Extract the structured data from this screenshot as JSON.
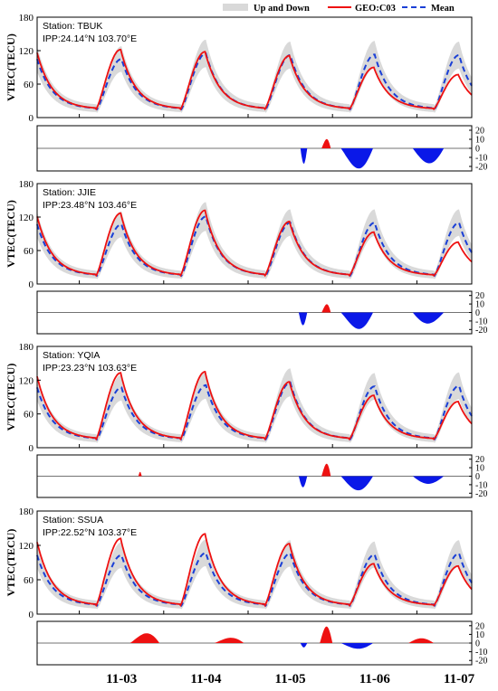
{
  "legend": {
    "band": "Up and Down",
    "obs": "GEO:C03",
    "mean": "Mean"
  },
  "colors": {
    "band": "#d9d9d9",
    "obs": "#ee1111",
    "mean": "#1a3fd6",
    "pos": "#ee1111",
    "neg": "#0a18e8"
  },
  "chart_data": {
    "type": "line",
    "x_unit": "day of November (UT)",
    "xlim": [
      2.5,
      7.65
    ],
    "x_ticks": [
      3,
      4,
      5,
      6,
      7
    ],
    "x_tick_labels": [
      "11-03",
      "11-04",
      "11-05",
      "11-06",
      "11-07"
    ],
    "ylabel": "VTEC(TECU)",
    "ylim": [
      0,
      180
    ],
    "y_ticks": [
      0,
      60,
      120,
      180
    ],
    "diff_ylim": [
      -25,
      25
    ],
    "diff_ticks": [
      20,
      10,
      0,
      -10,
      -20
    ],
    "panels": [
      {
        "station": "Station: TBUK",
        "ipp": "IPP:24.14°N 103.70°E",
        "obs_peaks": [
          122,
          118,
          111,
          90,
          77
        ],
        "mean_peaks": [
          105,
          115,
          112,
          113,
          112
        ],
        "diff_segments": [
          {
            "x": [
              5.62,
              5.7
            ],
            "h": [
              -17,
              -17
            ]
          },
          {
            "x": [
              6.1,
              6.48
            ],
            "h": [
              -16,
              -28
            ]
          },
          {
            "x": [
              6.95,
              7.32
            ],
            "h": [
              -14,
              -19
            ]
          },
          {
            "x": [
              5.87,
              5.98
            ],
            "h": [
              7,
              13
            ]
          }
        ]
      },
      {
        "station": "Station: JJIE",
        "ipp": "IPP:23.48°N 103.46°E",
        "obs_peaks": [
          127,
          132,
          112,
          93,
          75
        ],
        "mean_peaks": [
          107,
          121,
          110,
          110,
          110
        ],
        "diff_segments": [
          {
            "x": [
              5.6,
              5.7
            ],
            "h": [
              -15,
              -15
            ]
          },
          {
            "x": [
              6.1,
              6.48
            ],
            "h": [
              -13,
              -25
            ]
          },
          {
            "x": [
              6.95,
              7.32
            ],
            "h": [
              -14,
              -12
            ]
          },
          {
            "x": [
              5.87,
              5.98
            ],
            "h": [
              6,
              13
            ]
          }
        ]
      },
      {
        "station": "Station: YQIA",
        "ipp": "IPP:23.23°N 103.63°E",
        "obs_peaks": [
          133,
          135,
          117,
          93,
          82
        ],
        "mean_peaks": [
          107,
          111,
          116,
          109,
          110
        ],
        "diff_segments": [
          {
            "x": [
              5.6,
              5.7
            ],
            "h": [
              -13,
              -13
            ]
          },
          {
            "x": [
              6.1,
              6.48
            ],
            "h": [
              -13,
              -20
            ]
          },
          {
            "x": [
              6.95,
              7.32
            ],
            "h": [
              -9,
              -9
            ]
          },
          {
            "x": [
              5.87,
              5.98
            ],
            "h": [
              11,
              18
            ]
          },
          {
            "x": [
              3.7,
              3.74
            ],
            "h": [
              5,
              5
            ]
          }
        ]
      },
      {
        "station": "Station: SSUA",
        "ipp": "IPP:22.52°N 103.37°E",
        "obs_peaks": [
          132,
          140,
          123,
          88,
          84
        ],
        "mean_peaks": [
          103,
          107,
          106,
          104,
          106
        ],
        "diff_segments": [
          {
            "x": [
              5.62,
              5.7
            ],
            "h": [
              -5,
              -5
            ]
          },
          {
            "x": [
              6.1,
              6.48
            ],
            "h": [
              -5,
              -8
            ]
          },
          {
            "x": [
              3.6,
              3.95
            ],
            "h": [
              7,
              15
            ]
          },
          {
            "x": [
              4.6,
              4.95
            ],
            "h": [
              4,
              8
            ]
          },
          {
            "x": [
              5.85,
              6.0
            ],
            "h": [
              16,
              22
            ]
          },
          {
            "x": [
              6.9,
              7.2
            ],
            "h": [
              5,
              6
            ]
          }
        ]
      }
    ]
  }
}
